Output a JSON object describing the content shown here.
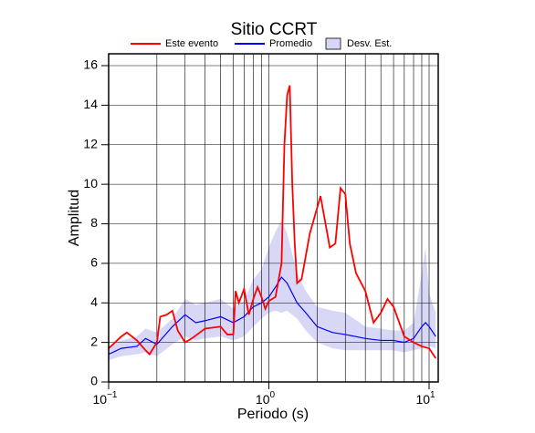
{
  "chart_data": {
    "type": "line",
    "title": "Sitio CCRT",
    "xlabel": "Periodo (s)",
    "ylabel": "Amplitud",
    "xscale": "log",
    "grid": true,
    "legend": "top",
    "xlim": [
      0.1,
      11.4
    ],
    "ylim": [
      0,
      16.6
    ],
    "xticks": [
      {
        "value": 0.1,
        "label": "10",
        "exponent": "−1"
      },
      {
        "value": 1,
        "label": "10",
        "exponent": "0"
      },
      {
        "value": 10,
        "label": "10",
        "exponent": "1"
      }
    ],
    "yticks": [
      0,
      2,
      4,
      6,
      8,
      10,
      12,
      14,
      16
    ],
    "band": {
      "name": "Desv. Est.",
      "color": "#d8d8f6",
      "x": [
        0.1,
        0.12,
        0.15,
        0.17,
        0.2,
        0.25,
        0.3,
        0.35,
        0.4,
        0.5,
        0.6,
        0.7,
        0.8,
        0.9,
        1.0,
        1.1,
        1.2,
        1.3,
        1.5,
        1.7,
        2.0,
        2.5,
        3,
        4,
        5,
        6,
        7,
        8,
        9,
        9.5,
        10,
        11
      ],
      "lower": [
        1.1,
        1.3,
        1.4,
        1.5,
        1.3,
        1.9,
        2.3,
        2.1,
        2.2,
        2.3,
        2.1,
        2.3,
        2.8,
        3.2,
        3.5,
        3.6,
        3.5,
        3.6,
        3.2,
        2.6,
        2.0,
        1.7,
        1.6,
        1.6,
        1.6,
        1.6,
        1.5,
        1.6,
        1.7,
        1.8,
        1.8,
        1.7
      ],
      "upper": [
        1.8,
        2.1,
        2.3,
        2.7,
        2.5,
        3.2,
        4.2,
        3.9,
        4.0,
        4.2,
        3.7,
        4.1,
        5.2,
        5.7,
        6.8,
        7.6,
        8.2,
        7.5,
        5.5,
        4.6,
        3.8,
        3.6,
        3.5,
        2.8,
        2.7,
        2.6,
        2.6,
        3.0,
        5.5,
        6.8,
        4.5,
        3.5
      ]
    },
    "series": [
      {
        "name": "Este evento",
        "color": "#ff0000",
        "x": [
          0.1,
          0.12,
          0.13,
          0.15,
          0.17,
          0.18,
          0.2,
          0.21,
          0.23,
          0.25,
          0.27,
          0.3,
          0.33,
          0.4,
          0.5,
          0.55,
          0.6,
          0.62,
          0.65,
          0.7,
          0.75,
          0.8,
          0.85,
          0.9,
          0.95,
          1.0,
          1.1,
          1.2,
          1.25,
          1.3,
          1.35,
          1.4,
          1.45,
          1.5,
          1.6,
          1.8,
          2.0,
          2.1,
          2.2,
          2.4,
          2.6,
          2.8,
          3.0,
          3.2,
          3.5,
          4.0,
          4.5,
          5.0,
          5.5,
          6.0,
          7.0,
          8.0,
          9.0,
          10,
          11
        ],
        "values": [
          1.7,
          2.3,
          2.5,
          2.1,
          1.6,
          1.4,
          2.0,
          3.3,
          3.4,
          3.6,
          2.6,
          2.0,
          2.2,
          2.7,
          2.8,
          2.4,
          2.4,
          4.6,
          4.0,
          4.7,
          3.4,
          4.2,
          4.8,
          4.3,
          3.7,
          4.1,
          4.3,
          6.0,
          12.0,
          14.5,
          15.0,
          10.0,
          7.0,
          5.0,
          5.2,
          7.5,
          8.8,
          9.4,
          8.5,
          6.8,
          7.0,
          9.8,
          9.5,
          7.0,
          5.5,
          4.6,
          3.0,
          3.5,
          4.2,
          3.8,
          2.3,
          2.0,
          1.8,
          1.7,
          1.2
        ]
      },
      {
        "name": "Promedio",
        "color": "#0000ff",
        "x": [
          0.1,
          0.12,
          0.15,
          0.17,
          0.2,
          0.25,
          0.3,
          0.35,
          0.4,
          0.5,
          0.6,
          0.7,
          0.8,
          0.9,
          1.0,
          1.1,
          1.2,
          1.3,
          1.5,
          1.7,
          2.0,
          2.5,
          3,
          4,
          5,
          6,
          7,
          8,
          9,
          9.5,
          10,
          11
        ],
        "values": [
          1.4,
          1.7,
          1.8,
          2.2,
          1.9,
          2.8,
          3.4,
          3.0,
          3.1,
          3.3,
          3.0,
          3.3,
          3.8,
          4.0,
          4.3,
          4.8,
          5.3,
          5.0,
          4.0,
          3.5,
          2.8,
          2.5,
          2.4,
          2.2,
          2.1,
          2.1,
          2.0,
          2.2,
          2.8,
          3.0,
          2.8,
          2.3
        ]
      }
    ]
  }
}
